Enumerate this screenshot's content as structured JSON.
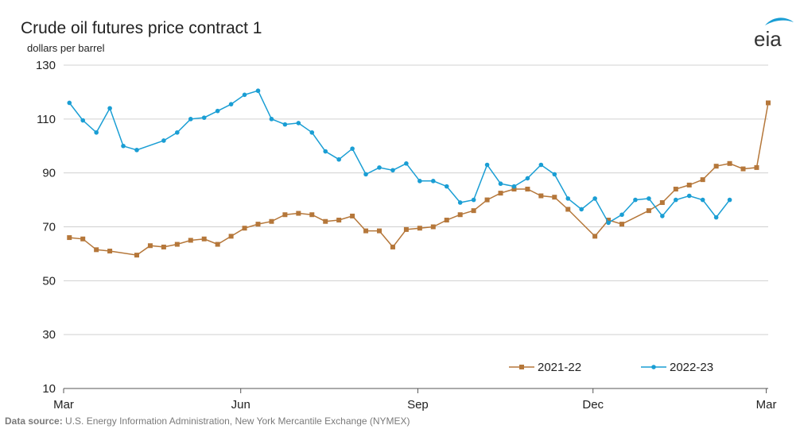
{
  "chart_data": {
    "type": "line",
    "title": "Crude oil futures  price contract 1",
    "ylabel": "dollars per barrel",
    "xlabel": "",
    "ylim": [
      10,
      130
    ],
    "yticks": [
      10,
      30,
      50,
      70,
      90,
      110,
      130
    ],
    "xlim": [
      0,
      366
    ],
    "xticks": [
      {
        "label": "Mar",
        "day": 0
      },
      {
        "label": "Jun",
        "day": 92
      },
      {
        "label": "Sep",
        "day": 184
      },
      {
        "label": "Dec",
        "day": 275
      },
      {
        "label": "Mar",
        "day": 365
      }
    ],
    "grid": true,
    "legend": "bottom-right",
    "series": [
      {
        "name": "2021-22",
        "color": "#b5773a",
        "marker": "square",
        "points": [
          [
            3,
            66
          ],
          [
            10,
            65.5
          ],
          [
            17,
            61.5
          ],
          [
            24,
            61
          ],
          [
            38,
            59.5
          ],
          [
            45,
            63
          ],
          [
            52,
            62.5
          ],
          [
            59,
            63.5
          ],
          [
            66,
            65
          ],
          [
            73,
            65.5
          ],
          [
            80,
            63.5
          ],
          [
            87,
            66.5
          ],
          [
            94,
            69.5
          ],
          [
            101,
            71
          ],
          [
            108,
            72
          ],
          [
            115,
            74.5
          ],
          [
            122,
            75
          ],
          [
            129,
            74.5
          ],
          [
            136,
            72
          ],
          [
            143,
            72.5
          ],
          [
            150,
            74
          ],
          [
            157,
            68.5
          ],
          [
            164,
            68.5
          ],
          [
            171,
            62.5
          ],
          [
            178,
            69
          ],
          [
            185,
            69.5
          ],
          [
            192,
            70
          ],
          [
            199,
            72.5
          ],
          [
            206,
            74.5
          ],
          [
            213,
            76
          ],
          [
            220,
            80
          ],
          [
            227,
            82.5
          ],
          [
            234,
            84
          ],
          [
            241,
            84
          ],
          [
            248,
            81.5
          ],
          [
            255,
            81
          ],
          [
            262,
            76.5
          ],
          [
            276,
            66.5
          ],
          [
            283,
            72.5
          ],
          [
            290,
            71
          ],
          [
            304,
            76
          ],
          [
            311,
            79
          ],
          [
            318,
            84
          ],
          [
            325,
            85.5
          ],
          [
            332,
            87.5
          ],
          [
            339,
            92.5
          ],
          [
            346,
            93.5
          ],
          [
            353,
            91.5
          ],
          [
            360,
            92
          ],
          [
            366,
            116
          ]
        ]
      },
      {
        "name": "2022-23",
        "color": "#1a9ed4",
        "marker": "circle",
        "points": [
          [
            3,
            116
          ],
          [
            10,
            109.5
          ],
          [
            17,
            105
          ],
          [
            24,
            114
          ],
          [
            31,
            100
          ],
          [
            38,
            98.5
          ],
          [
            52,
            102
          ],
          [
            59,
            105
          ],
          [
            66,
            110
          ],
          [
            73,
            110.5
          ],
          [
            80,
            113
          ],
          [
            87,
            115.5
          ],
          [
            94,
            119
          ],
          [
            101,
            120.5
          ],
          [
            108,
            110
          ],
          [
            115,
            108
          ],
          [
            122,
            108.5
          ],
          [
            129,
            105
          ],
          [
            136,
            98
          ],
          [
            143,
            95
          ],
          [
            150,
            99
          ],
          [
            157,
            89.5
          ],
          [
            164,
            92
          ],
          [
            171,
            91
          ],
          [
            178,
            93.5
          ],
          [
            185,
            87
          ],
          [
            192,
            87
          ],
          [
            199,
            85
          ],
          [
            206,
            79
          ],
          [
            213,
            80
          ],
          [
            220,
            93
          ],
          [
            227,
            86
          ],
          [
            234,
            85
          ],
          [
            241,
            88
          ],
          [
            248,
            93
          ],
          [
            255,
            89.5
          ],
          [
            262,
            80.5
          ],
          [
            269,
            76.5
          ],
          [
            276,
            80.5
          ],
          [
            283,
            71.5
          ],
          [
            290,
            74.5
          ],
          [
            297,
            80
          ],
          [
            304,
            80.5
          ],
          [
            311,
            74
          ],
          [
            318,
            80
          ],
          [
            325,
            81.5
          ],
          [
            332,
            80
          ],
          [
            339,
            73.5
          ],
          [
            346,
            80
          ]
        ]
      }
    ]
  },
  "source": {
    "label": "Data source:",
    "text": " U.S. Energy Information Administration, New York Mercantile Exchange (NYMEX)"
  },
  "logo": {
    "text": "eia",
    "color": "#1a9ed4"
  }
}
